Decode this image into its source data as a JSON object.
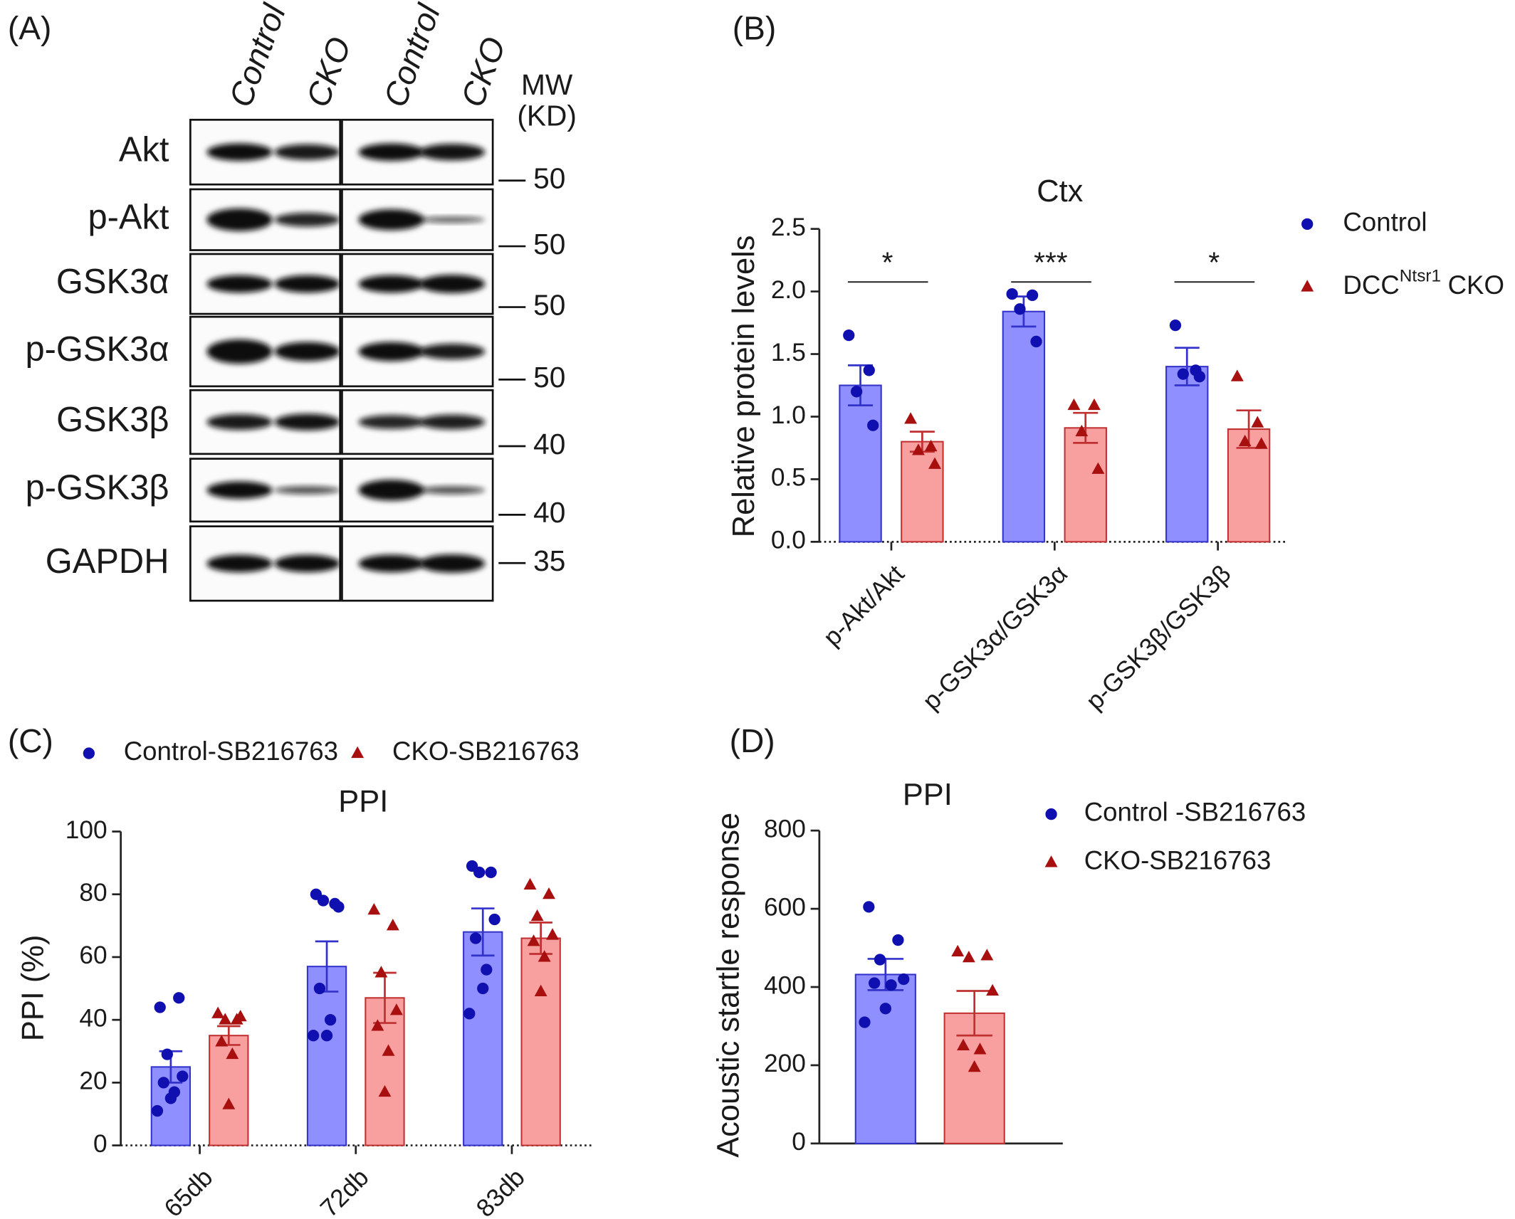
{
  "blot": {
    "panel": "(A)",
    "lanes": [
      "Control",
      "CKO",
      "Control",
      "CKO"
    ],
    "mw_header": [
      "MW",
      "(KD)"
    ],
    "rows": [
      {
        "label": "Akt",
        "mw": 50
      },
      {
        "label": "p-Akt",
        "mw": 50
      },
      {
        "label": "GSK3α",
        "mw": 50
      },
      {
        "label": "p-GSK3α",
        "mw": 50
      },
      {
        "label": "GSK3β",
        "mw": 40
      },
      {
        "label": "p-GSK3β",
        "mw": 40
      },
      {
        "label": "GAPDH",
        "mw": 35
      }
    ]
  },
  "chart_data": [
    {
      "type": "bar",
      "panel": "(B)",
      "title": "Ctx",
      "ylabel": "Relative protein levels",
      "categories": [
        "p-Akt/Akt",
        "p-GSK3α/GSK3α",
        "p-GSK3β/GSK3β"
      ],
      "significance": [
        "*",
        "***",
        "*"
      ],
      "ylim": [
        0,
        2.5
      ],
      "yticks": [
        {
          "value": 0,
          "label": "0.0"
        },
        0.5,
        {
          "value": 1,
          "label": "1.0"
        },
        1.5,
        {
          "value": 2,
          "label": "2.0"
        },
        2.5
      ],
      "series": [
        {
          "name": "Control",
          "color": "#8f8fff",
          "edge_color": "#3333cc",
          "marker_color": "#1010b0",
          "marker": "circle",
          "values": [
            1.25,
            1.84,
            1.4
          ],
          "errors": [
            0.16,
            0.12,
            0.15
          ],
          "points": [
            [
              1.65,
              1.37,
              1.2,
              0.93
            ],
            [
              1.98,
              1.97,
              1.86,
              1.6
            ],
            [
              1.73,
              1.37,
              1.34,
              1.32
            ]
          ]
        },
        {
          "name": [
            "DCC",
            "Ntsr1",
            "CKO"
          ],
          "color": "#f8a0a0",
          "edge_color": "#c03030",
          "marker_color": "#a81010",
          "marker": "triangle",
          "values": [
            0.8,
            0.91,
            0.9
          ],
          "errors": [
            0.08,
            0.12,
            0.15
          ],
          "points": [
            [
              0.98,
              0.76,
              0.73,
              0.62
            ],
            [
              1.09,
              1.09,
              0.88,
              0.58
            ],
            [
              1.32,
              0.95,
              0.8,
              0.78
            ]
          ]
        }
      ]
    },
    {
      "type": "bar",
      "panel": "(C)",
      "title": "PPI",
      "ylabel": "PPI (%)",
      "categories": [
        "65db",
        "72db",
        "83db"
      ],
      "ylim": [
        0,
        100
      ],
      "yticks": [
        0,
        20,
        40,
        60,
        80,
        100
      ],
      "series": [
        {
          "name": "Control-SB216763",
          "color": "#8f8fff",
          "edge_color": "#3333cc",
          "marker_color": "#1010b0",
          "marker": "circle",
          "values": [
            25,
            57,
            68
          ],
          "errors": [
            5,
            8,
            7.5
          ],
          "points": [
            [
              44,
              47,
              29,
              22,
              20,
              17,
              15,
              11
            ],
            [
              80,
              77,
              78,
              76,
              50,
              40,
              35,
              35
            ],
            [
              89,
              87,
              87,
              72,
              66,
              56,
              50,
              42
            ]
          ]
        },
        {
          "name": "CKO-SB216763",
          "color": "#f8a0a0",
          "edge_color": "#c03030",
          "marker_color": "#a81010",
          "marker": "triangle",
          "values": [
            35,
            47,
            66
          ],
          "errors": [
            3,
            8,
            5
          ],
          "points": [
            [
              42,
              40,
              40,
              41,
              33,
              29,
              13
            ],
            [
              75,
              70,
              55,
              43,
              38,
              30,
              17
            ],
            [
              83,
              80,
              73,
              67,
              65,
              60,
              49
            ]
          ]
        }
      ]
    },
    {
      "type": "bar",
      "panel": "(D)",
      "title": "PPI",
      "ylabel": "Acoustic startle response",
      "ylim": [
        0,
        800
      ],
      "yticks": [
        0,
        200,
        400,
        600,
        800
      ],
      "series": [
        {
          "name": "Control -SB216763",
          "color": "#8f8fff",
          "edge_color": "#3333cc",
          "marker_color": "#1010b0",
          "marker": "circle",
          "values": [
            432
          ],
          "errors": [
            40
          ],
          "points": [
            [
              605,
              520,
              470,
              420,
              410,
              405,
              345,
              310
            ]
          ]
        },
        {
          "name": "CKO-SB216763",
          "color": "#f8a0a0",
          "edge_color": "#c03030",
          "marker_color": "#a81010",
          "marker": "triangle",
          "values": [
            333
          ],
          "errors": [
            57
          ],
          "points": [
            [
              490,
              480,
              475,
              390,
              250,
              240,
              195
            ]
          ]
        }
      ]
    }
  ]
}
